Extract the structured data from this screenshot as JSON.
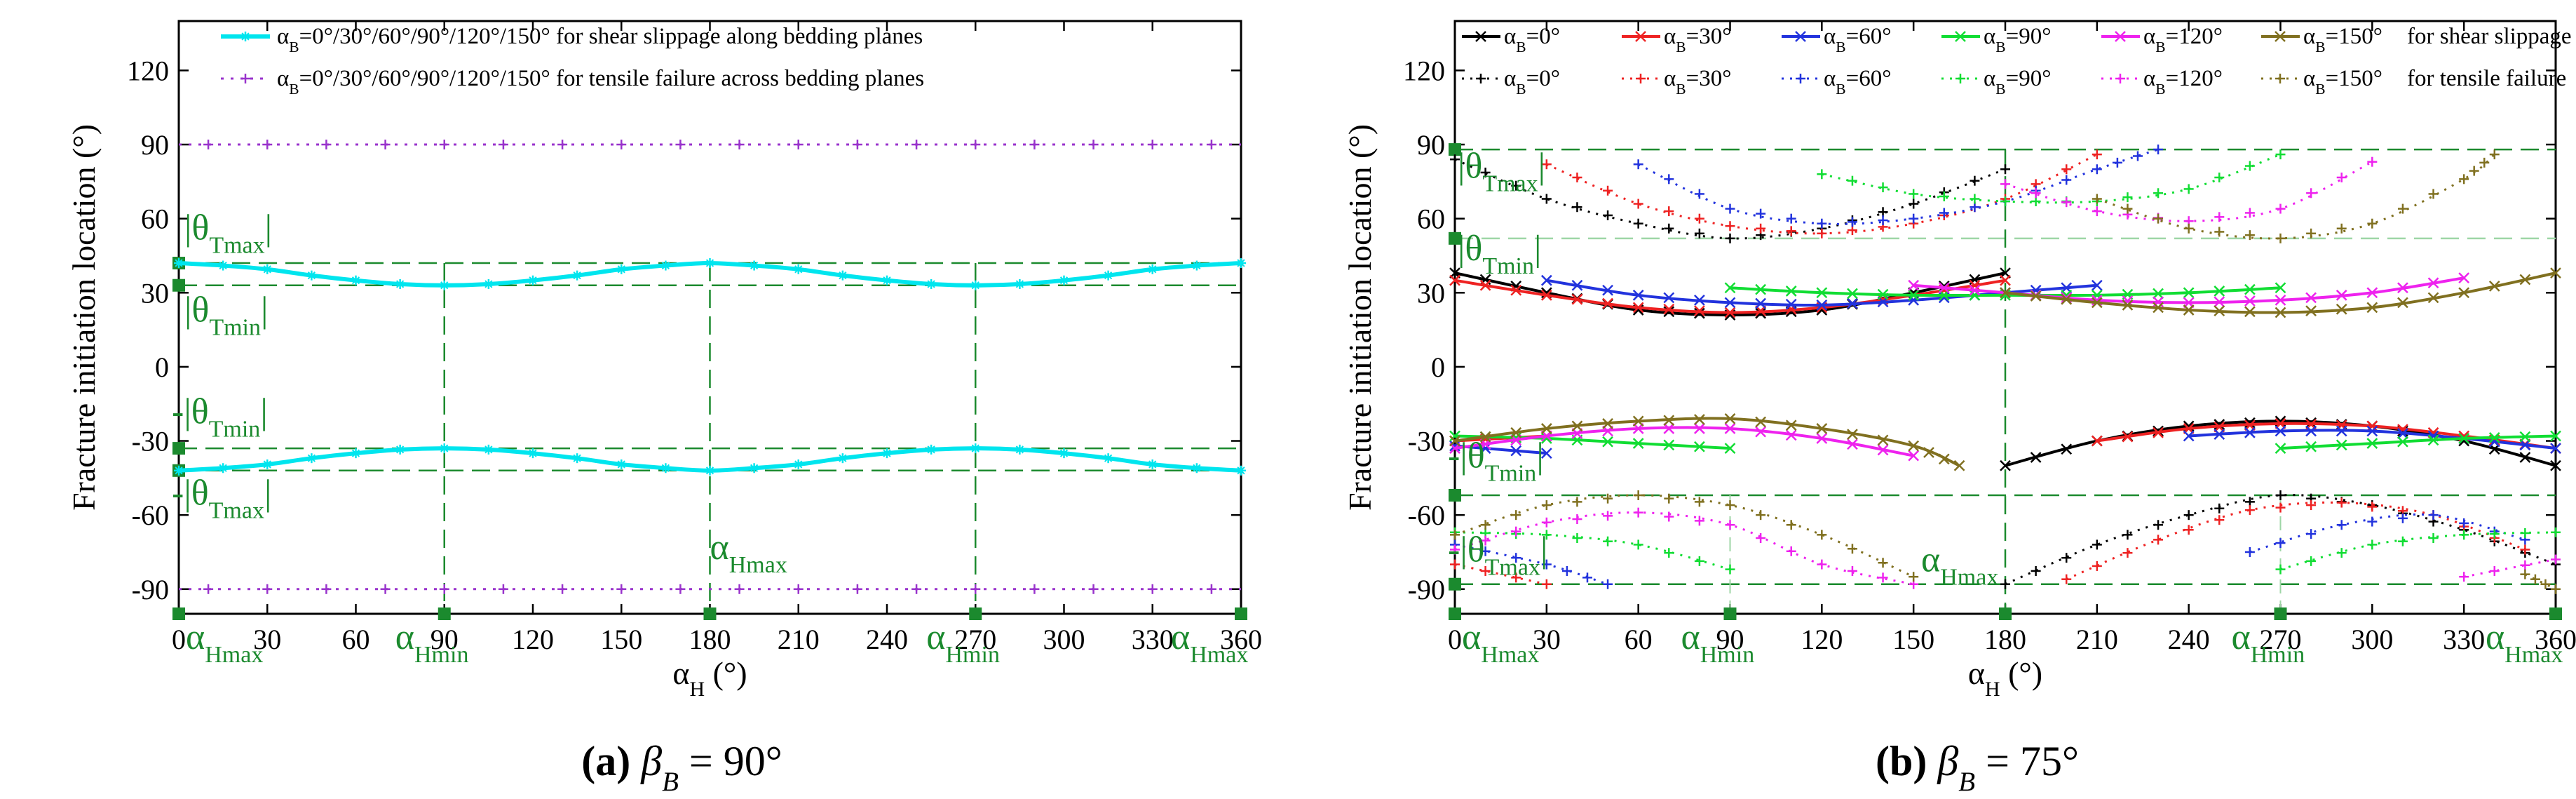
{
  "chart_data": [
    {
      "type": "line",
      "panel_caption": {
        "label": "(a)",
        "text": "β",
        "sub": "B",
        "rest": " = 90°"
      },
      "ylabel": "Fracture initiation location (°)",
      "xlabel": {
        "main": "α",
        "sub": "H",
        "rest": " (°)"
      },
      "xlim": [
        0,
        360
      ],
      "ylim": [
        -100,
        140
      ],
      "xticks": [
        0,
        30,
        60,
        90,
        120,
        150,
        180,
        210,
        240,
        270,
        300,
        330,
        360
      ],
      "yticks": [
        -90,
        -60,
        -30,
        0,
        30,
        60,
        90,
        120
      ],
      "grid": false,
      "legend_position": "top",
      "legend": [
        {
          "prefix": "α",
          "sub": "B",
          "text": "=0°/30°/60°/90°/120°/150° for shear slippage along bedding planes",
          "color": "#00e5ee",
          "style": "solid"
        },
        {
          "prefix": "α",
          "sub": "B",
          "text": "=0°/30°/60°/90°/120°/150° for tensile failure across bedding planes",
          "color": "#9933cc",
          "style": "dotted"
        }
      ],
      "series": [
        {
          "color": "#00e5ee",
          "style": "solid",
          "x": [
            0,
            15,
            30,
            45,
            60,
            75,
            90,
            105,
            120,
            135,
            150,
            165,
            180,
            195,
            210,
            225,
            240,
            255,
            270,
            285,
            300,
            315,
            330,
            345,
            360
          ],
          "y": [
            42,
            41,
            39.5,
            37,
            35,
            33.5,
            33,
            33.5,
            35,
            37,
            39.5,
            41,
            42,
            41,
            39.5,
            37,
            35,
            33.5,
            33,
            33.5,
            35,
            37,
            39.5,
            41,
            42
          ]
        },
        {
          "color": "#00e5ee",
          "style": "solid",
          "x": [
            0,
            15,
            30,
            45,
            60,
            75,
            90,
            105,
            120,
            135,
            150,
            165,
            180,
            195,
            210,
            225,
            240,
            255,
            270,
            285,
            300,
            315,
            330,
            345,
            360
          ],
          "y": [
            -42,
            -41,
            -39.5,
            -37,
            -35,
            -33.5,
            -33,
            -33.5,
            -35,
            -37,
            -39.5,
            -41,
            -42,
            -41,
            -39.5,
            -37,
            -35,
            -33.5,
            -33,
            -33.5,
            -35,
            -37,
            -39.5,
            -41,
            -42
          ]
        },
        {
          "color": "#9933cc",
          "style": "dotted",
          "x": [
            0,
            360
          ],
          "y": [
            90,
            90
          ]
        },
        {
          "color": "#9933cc",
          "style": "dotted",
          "x": [
            0,
            360
          ],
          "y": [
            -90,
            -90
          ]
        }
      ],
      "reference_lines": {
        "horizontal": [
          42,
          33,
          -33,
          -42
        ],
        "vertical": [
          90,
          180,
          270
        ]
      },
      "annotations": {
        "theta_tmax": "|θTmax|",
        "theta_tmin": "|θTmin|",
        "neg_theta_tmin": "-|θTmin|",
        "neg_theta_tmax": "-|θTmax|",
        "alpha_hmax": "αHmax",
        "alpha_hmin": "αHmin"
      }
    },
    {
      "type": "line",
      "panel_caption": {
        "label": "(b)",
        "text": "β",
        "sub": "B",
        "rest": " = 75°"
      },
      "ylabel": "Fracture initiation location (°)",
      "xlabel": {
        "main": "α",
        "sub": "H",
        "rest": " (°)"
      },
      "xlim": [
        0,
        360
      ],
      "ylim": [
        -100,
        140
      ],
      "xticks": [
        0,
        30,
        60,
        90,
        120,
        150,
        180,
        210,
        240,
        270,
        300,
        330,
        360
      ],
      "yticks": [
        -90,
        -60,
        -30,
        0,
        30,
        60,
        90,
        120
      ],
      "grid": false,
      "legend_position": "top",
      "legend_row1_suffix": "for shear slippage",
      "legend_row2_suffix": "for tensile failure",
      "legend_entries": [
        {
          "value": "=0°",
          "color": "#000000"
        },
        {
          "value": "=30°",
          "color": "#ee2222"
        },
        {
          "value": "=60°",
          "color": "#2233dd"
        },
        {
          "value": "=90°",
          "color": "#11dd33"
        },
        {
          "value": "=120°",
          "color": "#ee22ee"
        },
        {
          "value": "=150°",
          "color": "#807020"
        }
      ],
      "series_shear_upper": [
        {
          "name": "αB=0°",
          "color": "#000000",
          "x": [
            0,
            30,
            60,
            90,
            120,
            150,
            180
          ],
          "y": [
            38,
            30,
            23,
            21,
            23,
            30,
            38
          ]
        },
        {
          "name": "αB=30°",
          "color": "#ee2222",
          "x": [
            0,
            30,
            60,
            90,
            120,
            150,
            180
          ],
          "y": [
            35,
            29,
            24,
            22,
            24,
            29,
            35
          ]
        },
        {
          "name": "αB=60°",
          "color": "#2233dd",
          "x": [
            30,
            60,
            90,
            120,
            150,
            180,
            210
          ],
          "y": [
            35,
            29,
            26,
            25,
            27,
            30,
            33
          ]
        },
        {
          "name": "αB=90°",
          "color": "#11dd33",
          "x": [
            90,
            120,
            150,
            180,
            210,
            240,
            270
          ],
          "y": [
            32,
            30,
            29,
            29,
            29,
            30,
            32
          ]
        },
        {
          "name": "αB=120°",
          "color": "#ee22ee",
          "x": [
            150,
            180,
            210,
            240,
            270,
            300,
            330
          ],
          "y": [
            33,
            30,
            27,
            26,
            27,
            30,
            36
          ]
        },
        {
          "name": "αB=150°",
          "color": "#807020",
          "x": [
            180,
            210,
            240,
            270,
            300,
            330,
            360
          ],
          "y": [
            30,
            26,
            23,
            22,
            24,
            30,
            38
          ]
        }
      ],
      "series_shear_lower": [
        {
          "name": "αB=0°",
          "color": "#000000",
          "x": [
            180,
            210,
            240,
            270,
            300,
            330,
            360
          ],
          "y": [
            -40,
            -30,
            -24,
            -22,
            -24,
            -30,
            -40
          ]
        },
        {
          "name": "αB=30°",
          "color": "#ee2222",
          "x": [
            0,
            30,
            210,
            240,
            270,
            300,
            330,
            360
          ],
          "y": [
            -30,
            -28,
            -30,
            -25,
            -23,
            -24,
            -28,
            -33
          ]
        },
        {
          "name": "αB=60°",
          "color": "#2233dd",
          "x": [
            0,
            30,
            240,
            270,
            300,
            330,
            360
          ],
          "y": [
            -32,
            -35,
            -28,
            -26,
            -26,
            -29,
            -33
          ]
        },
        {
          "name": "αB=90°",
          "color": "#11dd33",
          "x": [
            0,
            30,
            60,
            90,
            270,
            300,
            330,
            360
          ],
          "y": [
            -28,
            -29,
            -31,
            -33,
            -33,
            -31,
            -29,
            -28
          ]
        },
        {
          "name": "αB=120°",
          "color": "#ee22ee",
          "x": [
            0,
            30,
            60,
            90,
            120,
            150
          ],
          "y": [
            -33,
            -28,
            -25,
            -25,
            -29,
            -36
          ]
        },
        {
          "name": "αB=150°",
          "color": "#807020",
          "x": [
            0,
            30,
            60,
            90,
            120,
            150,
            165
          ],
          "y": [
            -30,
            -25,
            -22,
            -21,
            -25,
            -32,
            -40
          ]
        }
      ],
      "series_tensile_upper": [
        {
          "name": "αB=0°",
          "color": "#000000",
          "x": [
            0,
            30,
            60,
            90,
            120,
            150,
            180
          ],
          "y": [
            84,
            68,
            58,
            52,
            56,
            66,
            80
          ]
        },
        {
          "name": "αB=30°",
          "color": "#ee2222",
          "x": [
            30,
            60,
            90,
            120,
            150,
            180,
            210
          ],
          "y": [
            82,
            66,
            57,
            54,
            58,
            68,
            86
          ]
        },
        {
          "name": "αB=60°",
          "color": "#2233dd",
          "x": [
            60,
            90,
            120,
            150,
            180,
            210,
            230
          ],
          "y": [
            82,
            64,
            58,
            60,
            67,
            80,
            88
          ]
        },
        {
          "name": "αB=90°",
          "color": "#11dd33",
          "x": [
            120,
            150,
            180,
            210,
            240,
            270
          ],
          "y": [
            78,
            70,
            67,
            67,
            72,
            86
          ]
        },
        {
          "name": "αB=120°",
          "color": "#ee22ee",
          "x": [
            180,
            210,
            240,
            270,
            300
          ],
          "y": [
            74,
            63,
            59,
            64,
            83
          ]
        },
        {
          "name": "αB=150°",
          "color": "#807020",
          "x": [
            210,
            240,
            270,
            300,
            330,
            340
          ],
          "y": [
            68,
            56,
            52,
            58,
            76,
            86
          ]
        }
      ],
      "series_tensile_lower": [
        {
          "name": "αB=0°",
          "color": "#000000",
          "x": [
            180,
            210,
            240,
            270,
            300,
            330,
            360
          ],
          "y": [
            -88,
            -72,
            -60,
            -52,
            -56,
            -66,
            -80
          ]
        },
        {
          "name": "αB=30°",
          "color": "#ee2222",
          "x": [
            0,
            30,
            200,
            230,
            260,
            290,
            320,
            350
          ],
          "y": [
            -80,
            -88,
            -86,
            -70,
            -58,
            -55,
            -60,
            -74
          ]
        },
        {
          "name": "αB=60°",
          "color": "#2233dd",
          "x": [
            0,
            30,
            50,
            260,
            290,
            320,
            350
          ],
          "y": [
            -72,
            -80,
            -88,
            -75,
            -64,
            -60,
            -70
          ]
        },
        {
          "name": "αB=90°",
          "color": "#11dd33",
          "x": [
            0,
            30,
            60,
            90,
            270,
            300,
            330,
            360
          ],
          "y": [
            -67,
            -68,
            -72,
            -82,
            -82,
            -72,
            -68,
            -67
          ]
        },
        {
          "name": "αB=120°",
          "color": "#ee22ee",
          "x": [
            0,
            30,
            60,
            90,
            120,
            150,
            330,
            360
          ],
          "y": [
            -74,
            -63,
            -59,
            -64,
            -80,
            -88,
            -85,
            -78
          ]
        },
        {
          "name": "αB=150°",
          "color": "#807020",
          "x": [
            0,
            30,
            60,
            90,
            120,
            150,
            350,
            360
          ],
          "y": [
            -68,
            -56,
            -52,
            -56,
            -68,
            -85,
            -84,
            -90
          ]
        }
      ],
      "reference_lines": {
        "horizontal": [
          88,
          52,
          -52,
          -88
        ],
        "vertical_dash": [
          180
        ],
        "vertical_light": [
          90,
          270
        ]
      },
      "annotations": {
        "theta_tmax": "|θTmax|",
        "theta_tmin": "|θTmin|",
        "neg_theta_tmin": "-|θTmin|",
        "neg_theta_tmax": "-|θTmax|",
        "alpha_hmax": "αHmax",
        "alpha_hmin": "αHmin"
      }
    }
  ]
}
